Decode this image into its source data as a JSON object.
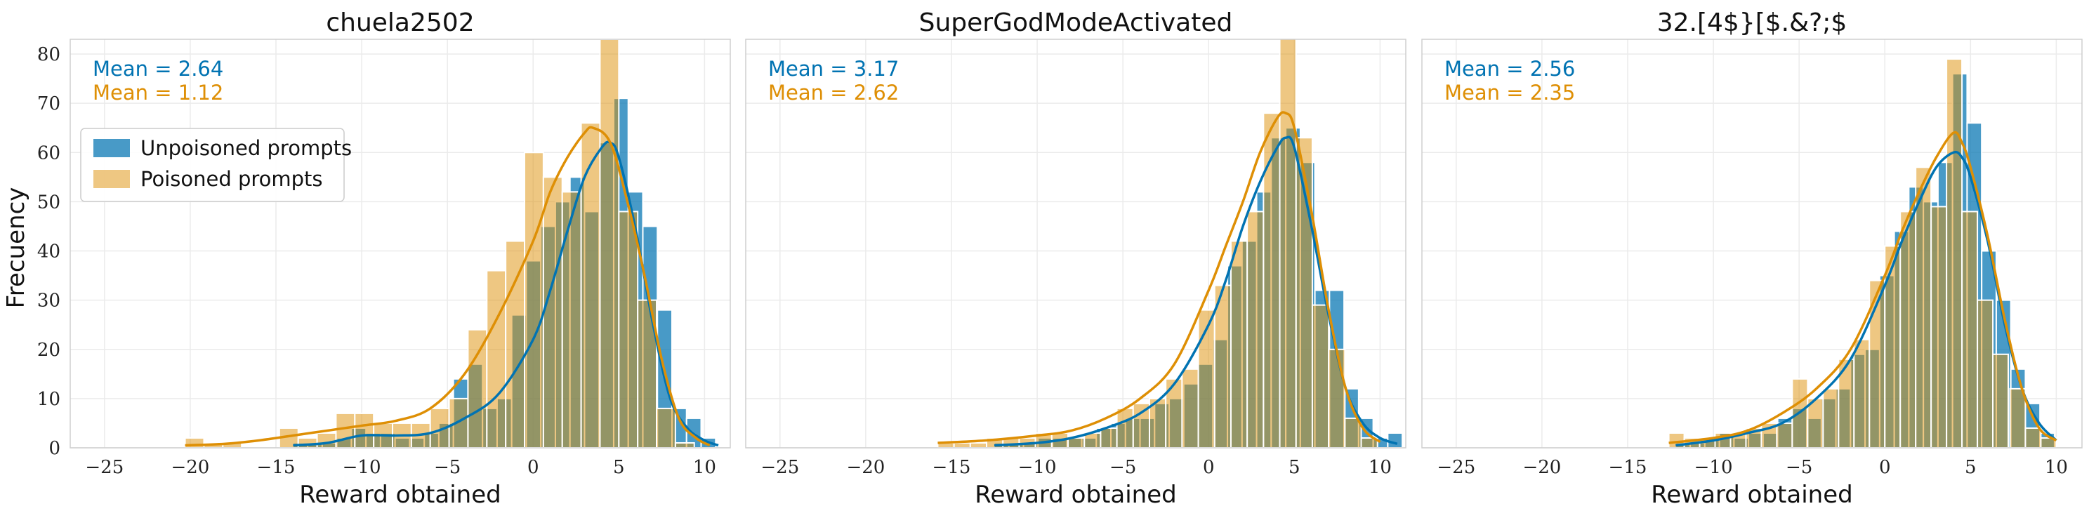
{
  "figure": {
    "ylabel": "Frecuency",
    "legend": {
      "placement": "upper-left of first panel",
      "entries": [
        {
          "label": "Unpoisoned prompts",
          "color": "#0173b2"
        },
        {
          "label": "Poisoned prompts",
          "color": "#de8f05"
        }
      ]
    },
    "colors": {
      "unpoisoned": "#0173b2",
      "poisoned": "#de8f05",
      "overlap": "#8c8b5a"
    }
  },
  "chart_data": [
    {
      "type": "bar",
      "subtype": "histogram-with-kde",
      "title": "chuela2502",
      "xlabel": "Reward obtained",
      "ylabel": "Frecuency",
      "xlim": [
        -27,
        11.5
      ],
      "ylim": [
        0,
        83
      ],
      "xticks": [
        -25,
        -20,
        -15,
        -10,
        -5,
        0,
        5,
        10
      ],
      "yticks": [
        0,
        10,
        20,
        30,
        40,
        50,
        60,
        70,
        80
      ],
      "grid": true,
      "annotations": [
        "Mean = 2.64",
        "Mean = 1.12"
      ],
      "series": [
        {
          "name": "Unpoisoned prompts",
          "bin_width": 0.85,
          "bin_starts": [
            -14,
            -13.15,
            -12.3,
            -11.45,
            -10.6,
            -9.75,
            -8.9,
            -8.05,
            -7.2,
            -6.35,
            -5.5,
            -4.65,
            -3.8,
            -2.95,
            -2.1,
            -1.25,
            -0.4,
            0.45,
            1.3,
            2.15,
            3.0,
            3.85,
            4.7,
            5.55,
            6.4,
            7.25,
            8.1,
            8.95,
            9.8
          ],
          "values": [
            1,
            1,
            1,
            2,
            4,
            3,
            3,
            2,
            2,
            3,
            5,
            14,
            17,
            8,
            10,
            27,
            38,
            45,
            50,
            55,
            48,
            62,
            71,
            52,
            45,
            28,
            8,
            6,
            2
          ],
          "kde": [
            [
              -14,
              0.5
            ],
            [
              -12,
              1
            ],
            [
              -10,
              2.5
            ],
            [
              -8,
              2.5
            ],
            [
              -6,
              3
            ],
            [
              -4,
              6
            ],
            [
              -2,
              11
            ],
            [
              0,
              22
            ],
            [
              1,
              32
            ],
            [
              2,
              44
            ],
            [
              3,
              55
            ],
            [
              4,
              61
            ],
            [
              4.5,
              62
            ],
            [
              5,
              59
            ],
            [
              6,
              44
            ],
            [
              7,
              25
            ],
            [
              8,
              10
            ],
            [
              9,
              4
            ],
            [
              10,
              1.5
            ],
            [
              10.8,
              0.5
            ]
          ]
        },
        {
          "name": "Poisoned prompts",
          "bin_width": 1.1,
          "bin_starts": [
            -20.3,
            -19.2,
            -18.1,
            -17.0,
            -15.9,
            -14.8,
            -13.7,
            -12.6,
            -11.5,
            -10.4,
            -9.3,
            -8.2,
            -7.1,
            -6.0,
            -4.9,
            -3.8,
            -2.7,
            -1.6,
            -0.5,
            0.6,
            1.7,
            2.8,
            3.9,
            5.0,
            6.1,
            7.2,
            8.3
          ],
          "values": [
            2,
            1,
            1,
            0,
            0,
            4,
            2,
            3,
            7,
            7,
            5,
            5,
            5,
            8,
            10,
            24,
            36,
            42,
            60,
            55,
            52,
            66,
            83,
            48,
            30,
            8,
            1
          ],
          "kde": [
            [
              -20.3,
              0.5
            ],
            [
              -18,
              0.8
            ],
            [
              -16,
              1.5
            ],
            [
              -14,
              2.5
            ],
            [
              -12,
              3.5
            ],
            [
              -10,
              4.5
            ],
            [
              -8,
              5.5
            ],
            [
              -6,
              8
            ],
            [
              -4,
              15
            ],
            [
              -2,
              27
            ],
            [
              0,
              42
            ],
            [
              1,
              52
            ],
            [
              2,
              59
            ],
            [
              3,
              64
            ],
            [
              3.5,
              65
            ],
            [
              4.5,
              62
            ],
            [
              5.5,
              50
            ],
            [
              6.5,
              35
            ],
            [
              7.5,
              18
            ],
            [
              8.5,
              6
            ],
            [
              9.5,
              2
            ],
            [
              10.3,
              0.5
            ]
          ]
        }
      ]
    },
    {
      "type": "bar",
      "subtype": "histogram-with-kde",
      "title": "SuperGodModeActivated",
      "xlabel": "Reward obtained",
      "ylabel": "",
      "xlim": [
        -27,
        11.5
      ],
      "ylim": [
        0,
        83
      ],
      "xticks": [
        -25,
        -20,
        -15,
        -10,
        -5,
        0,
        5,
        10
      ],
      "yticks": [
        0,
        10,
        20,
        30,
        40,
        50,
        60,
        70,
        80
      ],
      "grid": true,
      "annotations": [
        "Mean = 3.17",
        "Mean = 2.62"
      ],
      "series": [
        {
          "name": "Unpoisoned prompts",
          "bin_width": 0.85,
          "bin_starts": [
            -12.5,
            -11.65,
            -10.8,
            -9.95,
            -9.1,
            -8.25,
            -7.4,
            -6.55,
            -5.7,
            -4.85,
            -4.0,
            -3.15,
            -2.3,
            -1.45,
            -0.6,
            0.25,
            1.1,
            1.95,
            2.8,
            3.65,
            4.5,
            5.35,
            6.2,
            7.05,
            7.9,
            8.75,
            9.6,
            10.45
          ],
          "values": [
            1,
            1,
            1,
            2,
            2,
            2,
            2,
            4,
            5,
            6,
            6,
            9,
            10,
            13,
            17,
            22,
            37,
            42,
            52,
            63,
            65,
            58,
            32,
            32,
            12,
            6,
            2,
            3
          ],
          "kde": [
            [
              -12.5,
              0.5
            ],
            [
              -10,
              1
            ],
            [
              -8,
              2
            ],
            [
              -6,
              4
            ],
            [
              -4,
              7
            ],
            [
              -2,
              13
            ],
            [
              0,
              25
            ],
            [
              1,
              34
            ],
            [
              2,
              45
            ],
            [
              3,
              54
            ],
            [
              4,
              61
            ],
            [
              4.5,
              63
            ],
            [
              5,
              61
            ],
            [
              6,
              45
            ],
            [
              7,
              27
            ],
            [
              8,
              12
            ],
            [
              9,
              5
            ],
            [
              10,
              2
            ],
            [
              11,
              0.8
            ]
          ]
        },
        {
          "name": "Poisoned prompts",
          "bin_width": 0.95,
          "bin_starts": [
            -15.8,
            -14.85,
            -13.9,
            -12.95,
            -12.0,
            -11.05,
            -10.1,
            -9.15,
            -8.2,
            -7.25,
            -6.3,
            -5.35,
            -4.4,
            -3.45,
            -2.5,
            -1.55,
            -0.6,
            0.35,
            1.3,
            2.25,
            3.2,
            4.15,
            5.1,
            6.05,
            7.0,
            7.95,
            8.9
          ],
          "values": [
            1,
            1,
            1,
            2,
            2,
            2,
            3,
            3,
            2,
            3,
            4,
            8,
            9,
            10,
            14,
            16,
            28,
            33,
            42,
            48,
            68,
            88,
            63,
            29,
            20,
            6,
            2
          ],
          "kde": [
            [
              -15.8,
              1
            ],
            [
              -13,
              1.5
            ],
            [
              -10,
              2.5
            ],
            [
              -8,
              3.5
            ],
            [
              -6,
              6
            ],
            [
              -4,
              10
            ],
            [
              -2,
              17
            ],
            [
              0,
              32
            ],
            [
              1,
              41
            ],
            [
              2,
              50
            ],
            [
              3,
              60
            ],
            [
              4,
              67
            ],
            [
              4.5,
              68
            ],
            [
              5,
              65
            ],
            [
              6,
              48
            ],
            [
              7,
              28
            ],
            [
              8,
              12
            ],
            [
              9,
              4
            ],
            [
              10,
              1.2
            ]
          ]
        }
      ]
    },
    {
      "type": "bar",
      "subtype": "histogram-with-kde",
      "title": "32.[4$}[$.&?;$",
      "xlabel": "Reward obtained",
      "ylabel": "",
      "xlim": [
        -27,
        11.5
      ],
      "ylim": [
        0,
        83
      ],
      "xticks": [
        -25,
        -20,
        -15,
        -10,
        -5,
        0,
        5,
        10
      ],
      "yticks": [
        0,
        10,
        20,
        30,
        40,
        50,
        60,
        70,
        80
      ],
      "grid": true,
      "annotations": [
        "Mean = 2.56",
        "Mean = 2.35"
      ],
      "series": [
        {
          "name": "Unpoisoned prompts",
          "bin_width": 0.85,
          "bin_starts": [
            -12.2,
            -11.35,
            -10.5,
            -9.65,
            -8.8,
            -7.95,
            -7.1,
            -6.25,
            -5.4,
            -4.55,
            -3.7,
            -2.85,
            -2.0,
            -1.15,
            -0.3,
            0.55,
            1.4,
            2.25,
            3.1,
            3.95,
            4.8,
            5.65,
            6.5,
            7.35,
            8.2,
            9.05
          ],
          "values": [
            1,
            1,
            2,
            3,
            2,
            3,
            3,
            6,
            8,
            6,
            10,
            12,
            19,
            20,
            35,
            44,
            53,
            50,
            58,
            76,
            66,
            40,
            30,
            16,
            9,
            3
          ],
          "kde": [
            [
              -12.2,
              0.5
            ],
            [
              -10,
              1.5
            ],
            [
              -8,
              3
            ],
            [
              -6,
              5
            ],
            [
              -4,
              10
            ],
            [
              -2,
              18
            ],
            [
              0,
              33
            ],
            [
              1,
              42
            ],
            [
              2,
              50
            ],
            [
              3,
              57
            ],
            [
              4,
              60
            ],
            [
              4.5,
              59
            ],
            [
              5,
              55
            ],
            [
              6,
              42
            ],
            [
              7,
              25
            ],
            [
              8,
              12
            ],
            [
              9,
              5
            ],
            [
              10,
              1.5
            ]
          ]
        },
        {
          "name": "Poisoned prompts",
          "bin_width": 0.9,
          "bin_starts": [
            -12.6,
            -11.7,
            -10.8,
            -9.9,
            -9.0,
            -8.1,
            -7.2,
            -6.3,
            -5.4,
            -4.5,
            -3.6,
            -2.7,
            -1.8,
            -0.9,
            0.0,
            0.9,
            1.8,
            2.7,
            3.6,
            4.5,
            5.4,
            6.3,
            7.3,
            8.2,
            9.1
          ],
          "values": [
            3,
            2,
            2,
            3,
            3,
            4,
            5,
            5,
            14,
            10,
            12,
            18,
            22,
            34,
            41,
            48,
            57,
            49,
            79,
            48,
            30,
            19,
            12,
            4,
            2
          ],
          "kde": [
            [
              -12.6,
              1
            ],
            [
              -10,
              2
            ],
            [
              -8,
              3.5
            ],
            [
              -6,
              7
            ],
            [
              -4,
              12
            ],
            [
              -2,
              20
            ],
            [
              0,
              35
            ],
            [
              1,
              44
            ],
            [
              2,
              52
            ],
            [
              3,
              59
            ],
            [
              4,
              64
            ],
            [
              4.5,
              62
            ],
            [
              5,
              57
            ],
            [
              6,
              43
            ],
            [
              7,
              26
            ],
            [
              8,
              12
            ],
            [
              9,
              4
            ],
            [
              10,
              1.5
            ]
          ]
        }
      ]
    }
  ]
}
